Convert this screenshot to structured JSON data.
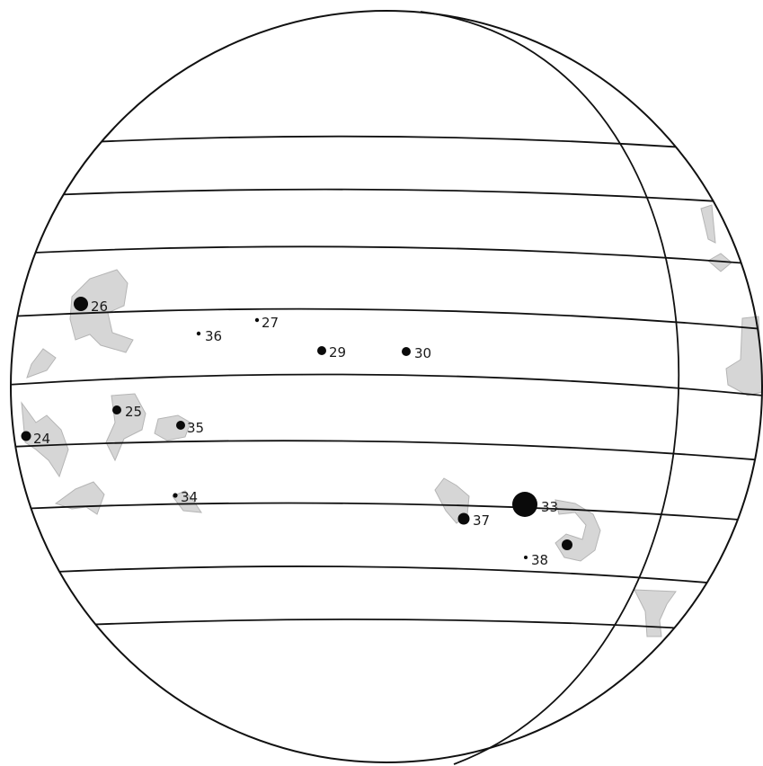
{
  "colors": {
    "outline": "#111111",
    "spot": "#0a0a0a",
    "facula": "#d6d6d6",
    "facula_stroke": "#b5b5b5"
  },
  "spots": [
    {
      "label": "26",
      "size": "large"
    },
    {
      "label": "27",
      "size": "tiny"
    },
    {
      "label": "36",
      "size": "tiny"
    },
    {
      "label": "29",
      "size": "small"
    },
    {
      "label": "30",
      "size": "small"
    },
    {
      "label": "25",
      "size": "small"
    },
    {
      "label": "35",
      "size": "small"
    },
    {
      "label": "24",
      "size": "small"
    },
    {
      "label": "34",
      "size": "tiny"
    },
    {
      "label": "33",
      "size": "huge"
    },
    {
      "label": "37",
      "size": "medium"
    },
    {
      "label": "38",
      "size": "tiny"
    },
    {
      "label": "",
      "size": "medium"
    }
  ]
}
